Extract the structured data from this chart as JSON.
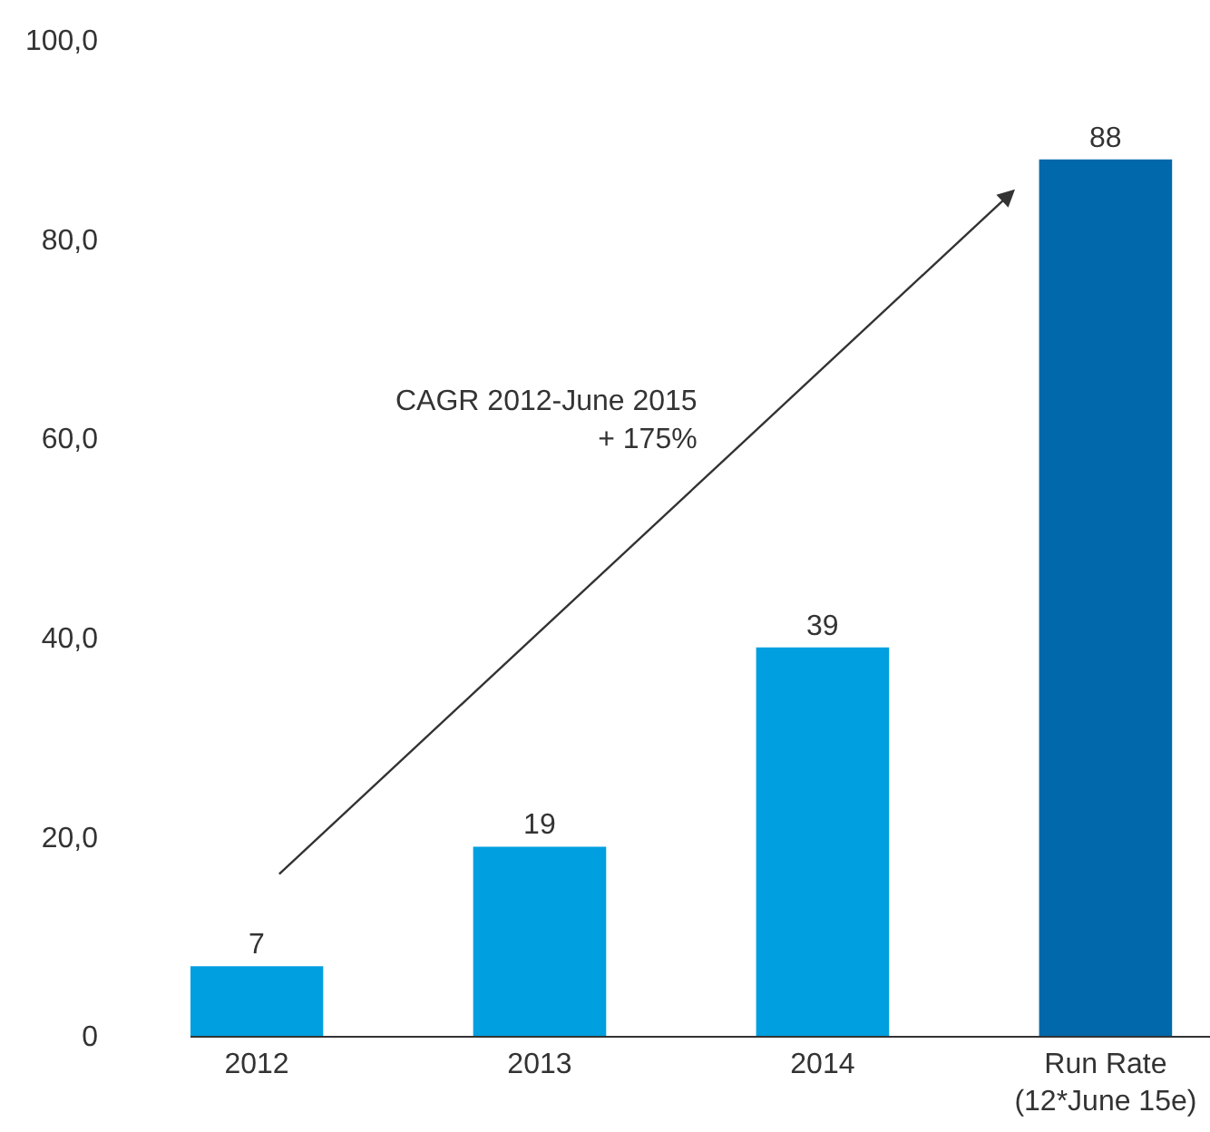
{
  "chart_data": {
    "type": "bar",
    "categories": [
      "2012",
      "2013",
      "2014",
      "Run Rate\n(12*June 15e)"
    ],
    "values": [
      7,
      19,
      39,
      88
    ],
    "colors": [
      "#009fe0",
      "#009fe0",
      "#009fe0",
      "#0068ab"
    ],
    "ylim": [
      0,
      100
    ],
    "yticks": [
      0,
      {
        "value": 20,
        "label": "20,0"
      },
      {
        "value": 40,
        "label": "40,0"
      },
      {
        "value": 60,
        "label": "60,0"
      },
      {
        "value": 80,
        "label": "80,0"
      },
      {
        "value": 100,
        "label": "100,0"
      }
    ],
    "data_labels": true,
    "grid": false,
    "annotations": [
      "CAGR 2012-June 2015\n+ 175%"
    ]
  }
}
